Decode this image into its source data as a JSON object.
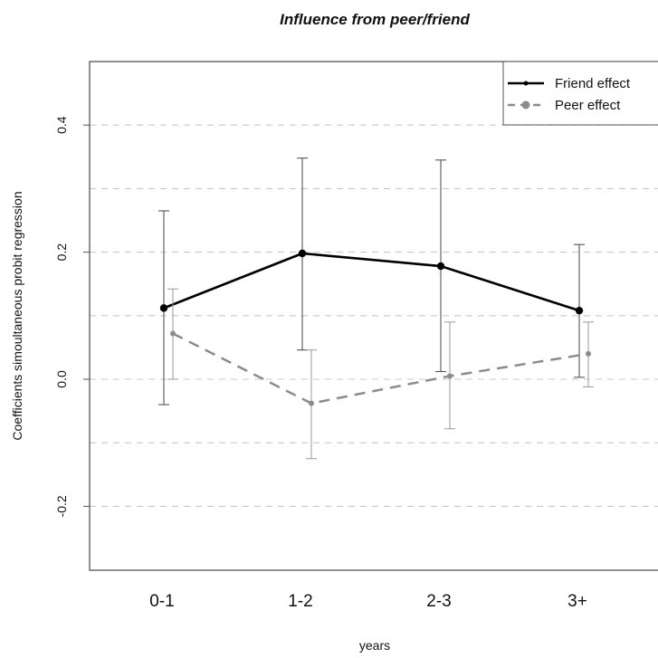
{
  "chart_data": {
    "type": "line",
    "title": "Influence from peer/friend",
    "xlabel": "years",
    "ylabel": "Coefficients simoultaneous probit regression",
    "categories": [
      "0-1",
      "1-2",
      "2-3",
      "3+"
    ],
    "ylim": [
      -0.3,
      0.5
    ],
    "yticks": [
      -0.2,
      0.0,
      0.2,
      0.4
    ],
    "ytick_labels": [
      "-0.2",
      "0.0",
      "0.2",
      "0.4"
    ],
    "gridlines_y": [
      -0.2,
      -0.1,
      0.0,
      0.1,
      0.2,
      0.3,
      0.4
    ],
    "grid": "horizontal dashed",
    "legend_position": "top-right",
    "series": [
      {
        "name": "Friend effect",
        "style": "solid",
        "color": "#000000",
        "values": [
          0.112,
          0.198,
          0.178,
          0.108
        ],
        "ci_low": [
          -0.04,
          0.046,
          0.012,
          0.003
        ],
        "ci_high": [
          0.265,
          0.348,
          0.345,
          0.212
        ]
      },
      {
        "name": "Peer effect",
        "style": "dashed",
        "color": "#8c8c8c",
        "values": [
          0.072,
          -0.038,
          0.005,
          0.04
        ],
        "ci_low": [
          0.0,
          -0.125,
          -0.078,
          -0.012
        ],
        "ci_high": [
          0.142,
          0.046,
          0.09,
          0.09
        ]
      }
    ]
  }
}
